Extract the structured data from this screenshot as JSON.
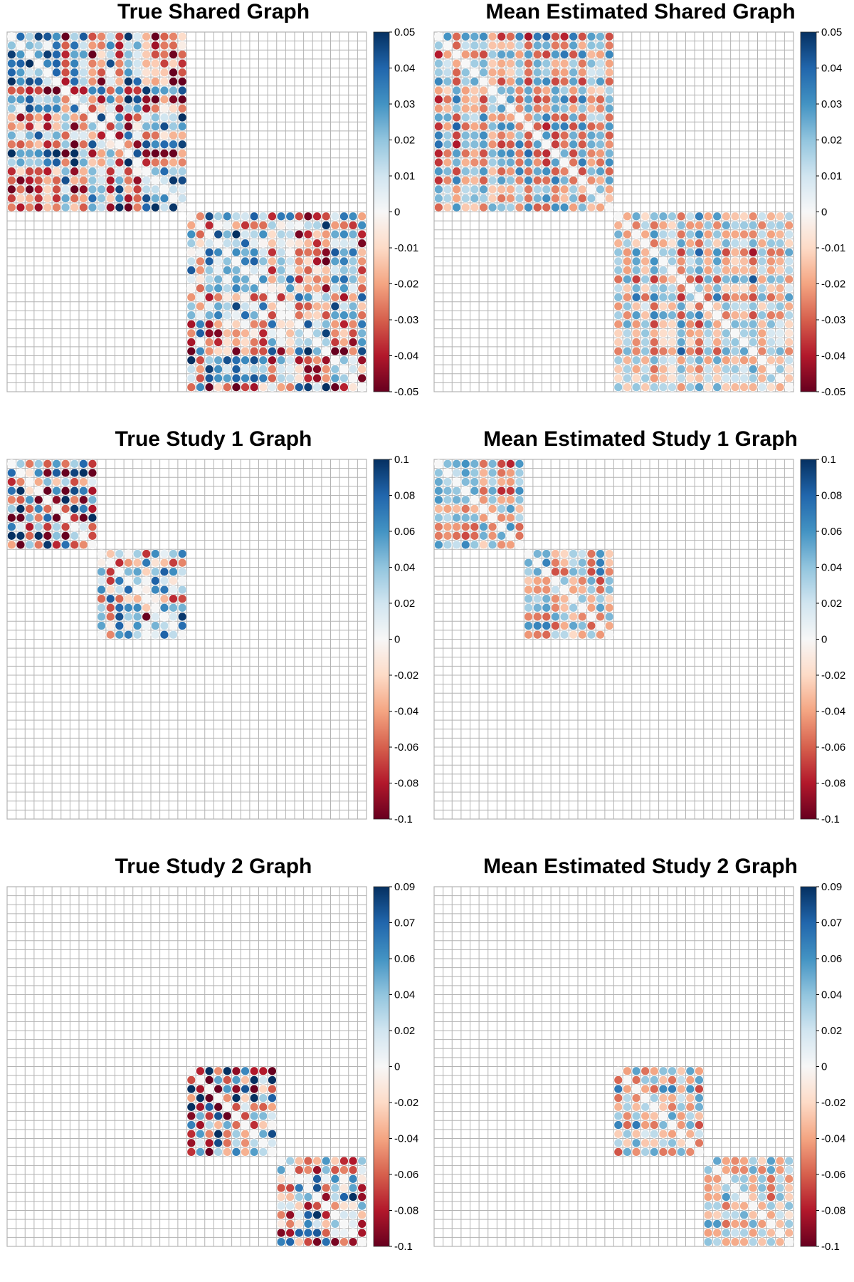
{
  "colorscale": {
    "name": "RdBu diverging",
    "negative_color": "#67001f",
    "mid_color": "#f7f7f7",
    "positive_color": "#053061",
    "grid_color": "#b3b3b3",
    "stops": [
      "#67001f",
      "#b2182b",
      "#d6604d",
      "#f4a582",
      "#fddbc7",
      "#f7f7f7",
      "#d1e5f0",
      "#92c5de",
      "#4393c3",
      "#2166ac",
      "#053061"
    ]
  },
  "chart_data": [
    {
      "type": "heatmap",
      "title": "True Shared Graph",
      "n": 40,
      "blocks": [
        {
          "start": 0,
          "size": 20
        },
        {
          "start": 20,
          "size": 20
        }
      ],
      "value_range": [
        -0.05,
        0.05
      ],
      "colorbar_ticks": [
        "0.05",
        "0.04",
        "0.03",
        "0.02",
        "0.01",
        "0",
        "-0.01",
        "-0.02",
        "-0.03",
        "-0.04",
        "-0.05"
      ],
      "pattern": "true",
      "seed": 11
    },
    {
      "type": "heatmap",
      "title": "Mean Estimated Shared Graph",
      "n": 40,
      "blocks": [
        {
          "start": 0,
          "size": 20
        },
        {
          "start": 20,
          "size": 20
        }
      ],
      "value_range": [
        -0.05,
        0.05
      ],
      "colorbar_ticks": [
        "0.05",
        "0.04",
        "0.03",
        "0.02",
        "0.01",
        "0",
        "-0.01",
        "-0.02",
        "-0.03",
        "-0.04",
        "-0.05"
      ],
      "pattern": "estimated",
      "seed": 23
    },
    {
      "type": "heatmap",
      "title": "True Study 1 Graph",
      "n": 40,
      "blocks": [
        {
          "start": 0,
          "size": 10
        },
        {
          "start": 10,
          "size": 10
        }
      ],
      "value_range": [
        -0.1,
        0.1
      ],
      "colorbar_ticks": [
        "0.1",
        "0.08",
        "0.06",
        "0.04",
        "0.02",
        "0",
        "-0.02",
        "-0.04",
        "-0.06",
        "-0.08",
        "-0.1"
      ],
      "pattern": "true",
      "seed": 37
    },
    {
      "type": "heatmap",
      "title": "Mean Estimated Study 1 Graph",
      "n": 40,
      "blocks": [
        {
          "start": 0,
          "size": 10
        },
        {
          "start": 10,
          "size": 10
        }
      ],
      "value_range": [
        -0.1,
        0.1
      ],
      "colorbar_ticks": [
        "0.1",
        "0.08",
        "0.06",
        "0.04",
        "0.02",
        "0",
        "-0.02",
        "-0.04",
        "-0.06",
        "-0.08",
        "-0.1"
      ],
      "pattern": "estimated",
      "seed": 41
    },
    {
      "type": "heatmap",
      "title": "True Study 2 Graph",
      "n": 40,
      "blocks": [
        {
          "start": 20,
          "size": 10
        },
        {
          "start": 30,
          "size": 10
        }
      ],
      "value_range": [
        -0.1,
        0.09
      ],
      "colorbar_ticks": [
        "0.09",
        "0.07",
        "0.06",
        "0.04",
        "0.02",
        "0",
        "-0.02",
        "-0.04",
        "-0.06",
        "-0.08",
        "-0.1"
      ],
      "pattern": "true",
      "seed": 53
    },
    {
      "type": "heatmap",
      "title": "Mean Estimated Study 2 Graph",
      "n": 40,
      "blocks": [
        {
          "start": 20,
          "size": 10
        },
        {
          "start": 30,
          "size": 10
        }
      ],
      "value_range": [
        -0.1,
        0.09
      ],
      "colorbar_ticks": [
        "0.09",
        "0.07",
        "0.06",
        "0.04",
        "0.02",
        "0",
        "-0.02",
        "-0.04",
        "-0.06",
        "-0.08",
        "-0.1"
      ],
      "pattern": "estimated",
      "seed": 67
    }
  ]
}
